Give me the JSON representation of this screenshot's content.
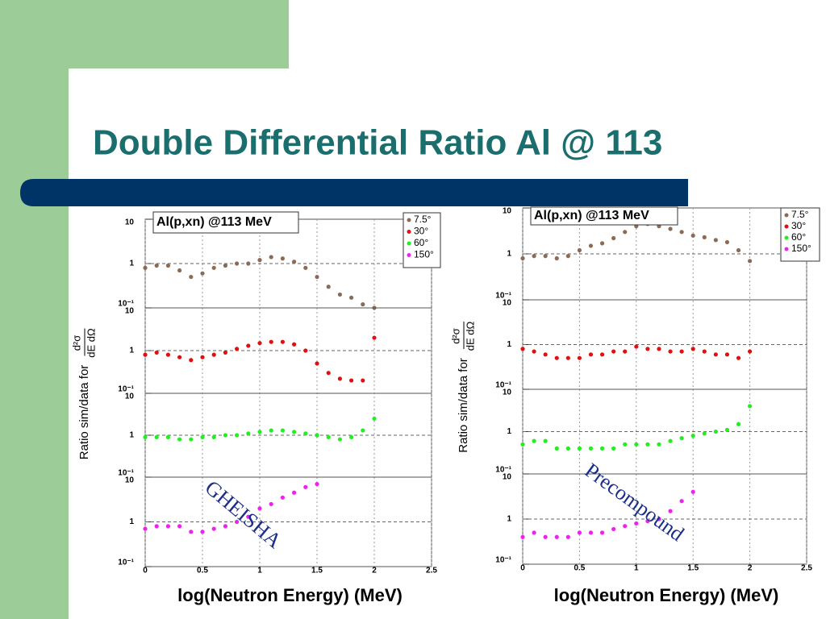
{
  "slide_title": "Double Differential Ratio Al @ 113",
  "chart_data": [
    {
      "type": "scatter",
      "title": "Al(p,xn) @113 MeV",
      "annotation": "GHEISHA",
      "x_label": "log(Neutron Energy) (MeV)",
      "y_label": "Ratio sim/data for",
      "y_label_numerator": "d²σ",
      "y_label_denominator": "dE dΩ",
      "xlim": [
        0,
        2.5
      ],
      "xticks": [
        0,
        0.5,
        1,
        1.5,
        2,
        2.5
      ],
      "ylim": [
        0.1,
        10
      ],
      "yticks": [
        {
          "value": 0.1,
          "label": "10⁻¹"
        },
        1,
        10
      ],
      "log_y": true,
      "grid": true,
      "legend": "upper right",
      "x": [
        0,
        0.1,
        0.2,
        0.3,
        0.4,
        0.5,
        0.6,
        0.7,
        0.8,
        0.9,
        1.0,
        1.1,
        1.2,
        1.3,
        1.4,
        1.5,
        1.6,
        1.7,
        1.8,
        1.9,
        2.0
      ],
      "series": [
        {
          "name": "7.5°",
          "color": "#8b6b55",
          "values": [
            0.8,
            0.9,
            0.9,
            0.7,
            0.5,
            0.6,
            0.8,
            0.9,
            1.0,
            1.0,
            1.2,
            1.4,
            1.3,
            1.1,
            0.8,
            0.5,
            0.3,
            0.2,
            0.17,
            0.12,
            0.1
          ]
        },
        {
          "name": "30°",
          "color": "#e01010",
          "values": [
            0.8,
            0.9,
            0.8,
            0.7,
            0.6,
            0.7,
            0.8,
            0.9,
            1.1,
            1.3,
            1.5,
            1.6,
            1.6,
            1.4,
            1.0,
            0.5,
            0.3,
            0.22,
            0.2,
            0.2,
            2.0
          ]
        },
        {
          "name": "60°",
          "color": "#22ee22",
          "values": [
            0.9,
            0.9,
            0.9,
            0.8,
            0.8,
            0.9,
            0.9,
            1.0,
            1.0,
            1.1,
            1.2,
            1.3,
            1.3,
            1.2,
            1.1,
            1.0,
            0.9,
            0.8,
            0.9,
            1.3,
            2.5
          ]
        },
        {
          "name": "150°",
          "color": "#ee22ee",
          "values": [
            0.7,
            0.8,
            0.8,
            0.8,
            0.6,
            0.6,
            0.7,
            0.8,
            1.0,
            1.3,
            2.0,
            2.5,
            3.5,
            4.5,
            6,
            7,
            null,
            null,
            null,
            null,
            null
          ]
        }
      ]
    },
    {
      "type": "scatter",
      "title": "Al(p,xn) @113 MeV",
      "annotation": "Precompound",
      "x_label": "log(Neutron Energy) (MeV)",
      "y_label": "Ratio sim/data for",
      "y_label_numerator": "d²σ",
      "y_label_denominator": "dE dΩ",
      "xlim": [
        0,
        2.5
      ],
      "xticks": [
        0,
        0.5,
        1,
        1.5,
        2,
        2.5
      ],
      "ylim": [
        0.1,
        10
      ],
      "yticks": [
        {
          "value": 0.1,
          "label": "10⁻¹"
        },
        1,
        10
      ],
      "log_y": true,
      "grid": true,
      "legend": "upper right",
      "x": [
        0,
        0.1,
        0.2,
        0.3,
        0.4,
        0.5,
        0.6,
        0.7,
        0.8,
        0.9,
        1.0,
        1.1,
        1.2,
        1.3,
        1.4,
        1.5,
        1.6,
        1.7,
        1.8,
        1.9,
        2.0
      ],
      "series": [
        {
          "name": "7.5°",
          "color": "#8b6b55",
          "values": [
            0.8,
            0.9,
            0.9,
            0.8,
            0.9,
            1.2,
            1.5,
            1.7,
            2.2,
            3,
            4,
            4.5,
            4,
            3.5,
            3,
            2.5,
            2.3,
            2,
            1.8,
            1.2,
            0.7
          ]
        },
        {
          "name": "30°",
          "color": "#e01010",
          "values": [
            0.8,
            0.7,
            0.6,
            0.5,
            0.5,
            0.5,
            0.6,
            0.6,
            0.7,
            0.7,
            0.9,
            0.8,
            0.8,
            0.7,
            0.7,
            0.8,
            0.7,
            0.6,
            0.6,
            0.5,
            0.7
          ]
        },
        {
          "name": "60°",
          "color": "#22ee22",
          "values": [
            0.5,
            0.6,
            0.6,
            0.4,
            0.4,
            0.4,
            0.4,
            0.4,
            0.4,
            0.5,
            0.5,
            0.5,
            0.5,
            0.6,
            0.7,
            0.8,
            0.9,
            1.0,
            1.1,
            1.5,
            4
          ]
        },
        {
          "name": "150°",
          "color": "#ee22ee",
          "values": [
            0.4,
            0.5,
            0.4,
            0.4,
            0.4,
            0.5,
            0.5,
            0.5,
            0.6,
            0.7,
            0.8,
            0.9,
            1.0,
            1.5,
            2.5,
            4,
            null,
            null,
            null,
            null,
            null
          ]
        }
      ]
    }
  ]
}
